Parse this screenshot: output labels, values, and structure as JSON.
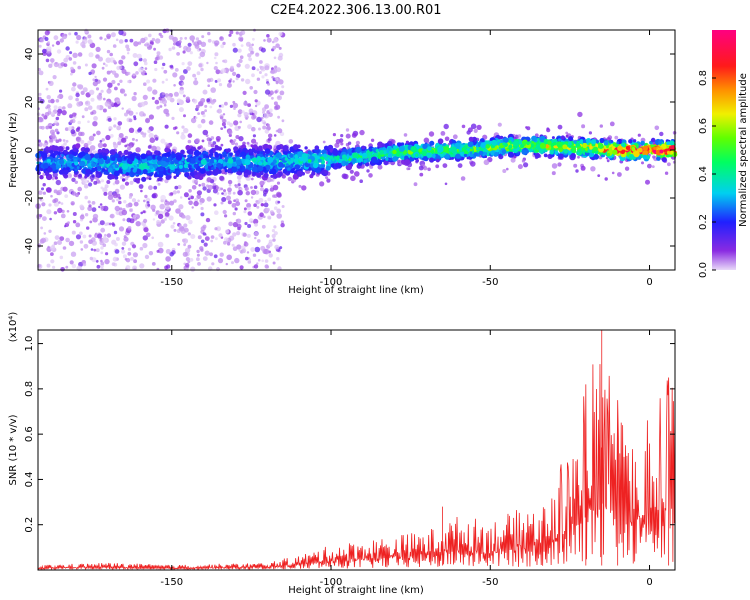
{
  "figure_title": "C2E4.2022.306.13.00.R01",
  "chart_data": [
    {
      "type": "heatmap",
      "xlabel": "Height of straight line (km)",
      "ylabel": "Frequency (Hz)",
      "xlim": [
        -192,
        8
      ],
      "ylim": [
        -50,
        50
      ],
      "xticks": [
        -150,
        -100,
        -50,
        0
      ],
      "yticks": [
        -40,
        -20,
        0,
        20,
        40
      ],
      "grid": false,
      "colorbar": {
        "label": "Normalized spectral amplitude",
        "range": [
          0.0,
          1.0
        ],
        "ticks": [
          0.0,
          0.2,
          0.4,
          0.6,
          0.8
        ],
        "colormap": "rainbow (purple → blue → cyan → green → yellow → orange → red → magenta)"
      },
      "ridge": {
        "description": "bright band near 0 Hz",
        "x": [
          -180,
          -160,
          -140,
          -120,
          -100,
          -80,
          -60,
          -40,
          -20,
          -10,
          0,
          5
        ],
        "frequency": [
          -5,
          -7,
          -5,
          -5,
          -4,
          -1,
          0,
          2,
          1,
          0,
          0,
          0
        ],
        "amplitude": [
          0.25,
          0.3,
          0.25,
          0.3,
          0.35,
          0.45,
          0.45,
          0.55,
          0.6,
          0.85,
          0.85,
          0.95
        ]
      },
      "noise_cutoff_x": -115
    },
    {
      "type": "line",
      "xlabel": "Height of straight line (km)",
      "ylabel": "SNR (10 * v/v)",
      "y_multiplier": "(x10⁴)",
      "xlim": [
        -192,
        8
      ],
      "ylim": [
        0,
        1.06
      ],
      "xticks": [
        -150,
        -100,
        -50,
        0
      ],
      "yticks": [
        0.2,
        0.4,
        0.6,
        0.8,
        1.0
      ],
      "grid": false,
      "series_color": "#ee2222",
      "envelope": {
        "x": [
          -192,
          -170,
          -150,
          -120,
          -110,
          -100,
          -90,
          -80,
          -70,
          -60,
          -50,
          -40,
          -30,
          -25,
          -20,
          -15,
          -10,
          -5,
          0,
          5,
          8
        ],
        "y": [
          0.02,
          0.03,
          0.02,
          0.03,
          0.06,
          0.1,
          0.12,
          0.14,
          0.16,
          0.22,
          0.2,
          0.25,
          0.3,
          0.45,
          0.6,
          0.75,
          0.5,
          0.55,
          0.55,
          0.65,
          0.7
        ]
      },
      "peaks": [
        {
          "x": -65,
          "y": 0.28
        },
        {
          "x": -20,
          "y": 0.82
        },
        {
          "x": -15,
          "y": 1.06
        },
        {
          "x": -10,
          "y": 0.75
        },
        {
          "x": 6,
          "y": 0.85
        }
      ]
    }
  ]
}
